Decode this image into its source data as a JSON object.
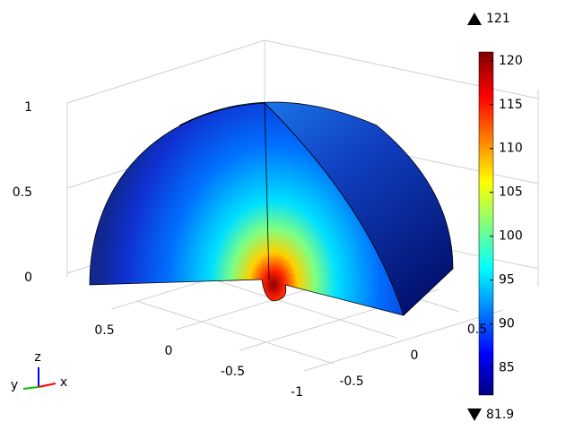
{
  "chart_data": {
    "type": "surface",
    "zticks": [
      0,
      0.5,
      1
    ],
    "xticks": [
      0.5,
      0,
      -0.5,
      -1
    ],
    "yticks": [
      -0.5,
      0,
      0.5
    ],
    "colorbar": {
      "range": [
        81.9,
        121
      ],
      "ticks": [
        85,
        90,
        95,
        100,
        105,
        110,
        115,
        120
      ]
    },
    "max": 121,
    "min": 81.9,
    "triad": {
      "x": "x",
      "y": "y",
      "z": "z"
    }
  }
}
